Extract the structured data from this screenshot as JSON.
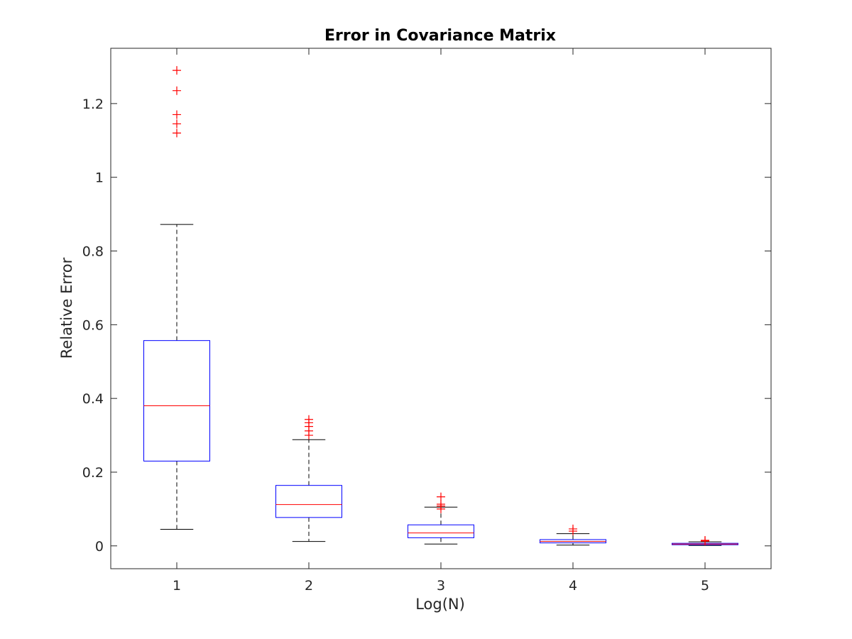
{
  "chart_data": {
    "type": "box",
    "title": "Error in Covariance Matrix",
    "xlabel": "Log(N)",
    "ylabel": "Relative Error",
    "categories": [
      "1",
      "2",
      "3",
      "4",
      "5"
    ],
    "ylim": [
      -0.062,
      1.35
    ],
    "yticks": [
      0,
      0.2,
      0.4,
      0.6,
      0.8,
      1,
      1.2
    ],
    "ytick_labels": [
      "0",
      "0.2",
      "0.4",
      "0.6",
      "0.8",
      "1",
      "1.2"
    ],
    "grid": false,
    "colors": {
      "box": "#0000ff",
      "median": "#ff0000",
      "whisker": "#000000",
      "outlier": "#ff0000",
      "axis": "#262626"
    },
    "boxes": [
      {
        "label": "1",
        "whisker_low": 0.045,
        "q1": 0.23,
        "median": 0.38,
        "q3": 0.557,
        "whisker_high": 0.872,
        "outliers": [
          1.12,
          1.145,
          1.17,
          1.235,
          1.29
        ]
      },
      {
        "label": "2",
        "whisker_low": 0.012,
        "q1": 0.077,
        "median": 0.112,
        "q3": 0.164,
        "whisker_high": 0.288,
        "outliers": [
          0.3,
          0.312,
          0.324,
          0.334,
          0.343
        ]
      },
      {
        "label": "3",
        "whisker_low": 0.005,
        "q1": 0.022,
        "median": 0.035,
        "q3": 0.057,
        "whisker_high": 0.105,
        "outliers": [
          0.1,
          0.108,
          0.113,
          0.133
        ]
      },
      {
        "label": "4",
        "whisker_low": 0.002,
        "q1": 0.008,
        "median": 0.012,
        "q3": 0.017,
        "whisker_high": 0.033,
        "outliers": [
          0.04,
          0.046
        ]
      },
      {
        "label": "5",
        "whisker_low": 0.001,
        "q1": 0.003,
        "median": 0.005,
        "q3": 0.007,
        "whisker_high": 0.011,
        "outliers": [
          0.013,
          0.015
        ]
      }
    ]
  }
}
